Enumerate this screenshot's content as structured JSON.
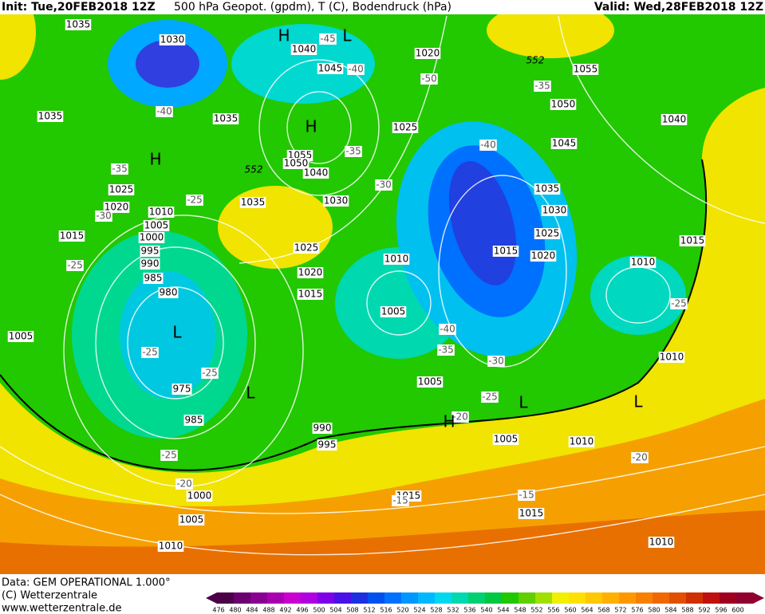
{
  "header": {
    "init": "Init: Tue,20FEB2018 12Z",
    "title": "500 hPa Geopot. (gpdm), T (C), Bodendruck (hPa)",
    "valid": "Valid: Wed,28FEB2018 12Z"
  },
  "footer": {
    "data": "Data: GEM OPERATIONAL 1.000°",
    "copyright": "(C) Wetterzentrale",
    "url": "www.wetterzentrale.de"
  },
  "scale": {
    "labels": [
      476,
      480,
      484,
      488,
      492,
      496,
      500,
      504,
      508,
      512,
      516,
      520,
      524,
      528,
      532,
      536,
      540,
      544,
      548,
      552,
      556,
      560,
      564,
      568,
      572,
      576,
      580,
      584,
      588,
      592,
      596,
      600
    ],
    "colors": [
      "#4b0048",
      "#6a0070",
      "#8a0090",
      "#a800b0",
      "#c800d0",
      "#b000e0",
      "#7d00e8",
      "#4a10e8",
      "#1c30e0",
      "#0050f0",
      "#0070ff",
      "#0098ff",
      "#00b8ff",
      "#00d8f0",
      "#00d8b0",
      "#00d070",
      "#00c840",
      "#20c800",
      "#60d000",
      "#a0e000",
      "#f0f000",
      "#ffe000",
      "#ffc800",
      "#ffb000",
      "#ff9800",
      "#f88000",
      "#f06800",
      "#e05000",
      "#d03000",
      "#c01010",
      "#a00020",
      "#900030"
    ]
  },
  "map": {
    "pressure_labels": [
      "1035",
      "1030",
      "1040",
      "1045",
      "1020",
      "1055",
      "1050",
      "1035",
      "1035",
      "1025",
      "1045",
      "1040",
      "1055",
      "1050",
      "1040",
      "1035",
      "1025",
      "1030",
      "1030",
      "1020",
      "1035",
      "1010",
      "1005",
      "1025",
      "1015",
      "1000",
      "1015",
      "995",
      "1025",
      "1015",
      "1020",
      "990",
      "1010",
      "1010",
      "1020",
      "985",
      "1015",
      "980",
      "1005",
      "1005",
      "1010",
      "975",
      "1005",
      "985",
      "990",
      "995",
      "1005",
      "1010",
      "1000",
      "1015",
      "1015",
      "1005",
      "1010",
      "1010"
    ],
    "temperature_labels": [
      "-45",
      "-40",
      "-50",
      "-35",
      "-40",
      "-35",
      "-40",
      "-35",
      "-25",
      "-30",
      "-30",
      "-25",
      "-25",
      "-40",
      "-35",
      "-30",
      "-25",
      "-25",
      "-25",
      "-20",
      "-25",
      "-20",
      "-20",
      "-15",
      "-15"
    ],
    "height_labels": [
      "552",
      "552"
    ],
    "centers": [
      "H",
      "L",
      "H",
      "H",
      "L",
      "L",
      "L",
      "L",
      "H"
    ]
  }
}
